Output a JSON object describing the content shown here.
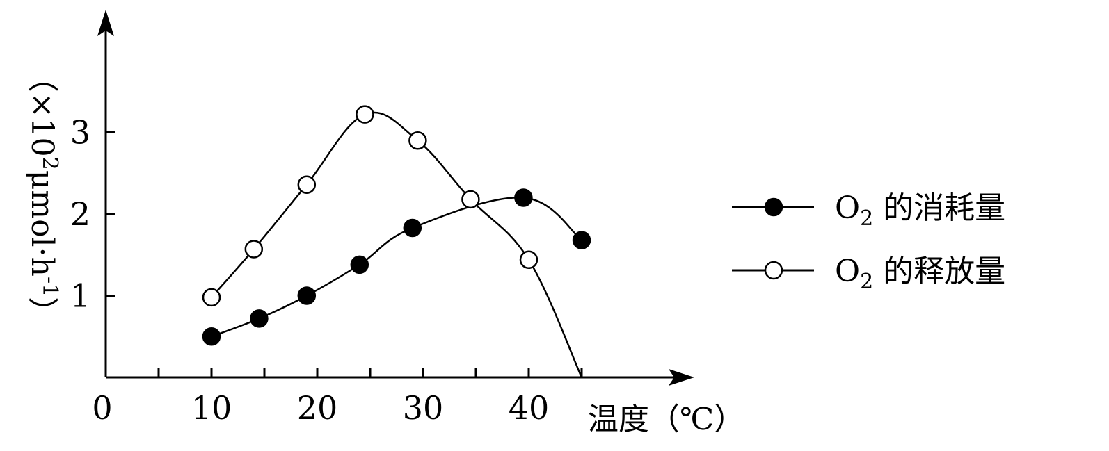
{
  "chart_data": {
    "type": "line",
    "xlabel": "温度（℃）",
    "ylabel": "（×10²μmol·h⁻¹）",
    "ylabel_parts": [
      "（×10",
      "2",
      "μmol·h",
      "-1",
      "）"
    ],
    "origin_label": "0",
    "xlim": [
      0,
      55
    ],
    "ylim": [
      0,
      3.6
    ],
    "x_ticks": [
      5,
      10,
      15,
      20,
      25,
      30,
      35,
      40,
      45
    ],
    "x_tick_labels": [
      {
        "x": 10,
        "label": "10"
      },
      {
        "x": 20,
        "label": "20"
      },
      {
        "x": 30,
        "label": "30"
      },
      {
        "x": 40,
        "label": "40"
      }
    ],
    "y_ticks": [
      1,
      2,
      3
    ],
    "y_tick_labels": [
      "1",
      "2",
      "3"
    ],
    "series": [
      {
        "name": "O₂ 的消耗量",
        "name_parts": [
          "O",
          "2",
          " 的消耗量"
        ],
        "marker": "filled-circle",
        "x": [
          10,
          14.5,
          19,
          24,
          29,
          39.5,
          45
        ],
        "y": [
          0.5,
          0.72,
          1.0,
          1.38,
          1.83,
          2.2,
          1.68
        ]
      },
      {
        "name": "O₂ 的释放量",
        "name_parts": [
          "O",
          "2",
          " 的释放量"
        ],
        "marker": "open-circle",
        "x": [
          10,
          14,
          19,
          24.5,
          29.5,
          34.5,
          40,
          45
        ],
        "y": [
          0.98,
          1.57,
          2.36,
          3.22,
          2.9,
          2.18,
          1.44,
          0.0
        ]
      }
    ],
    "legend_position": "right",
    "grid": false
  }
}
